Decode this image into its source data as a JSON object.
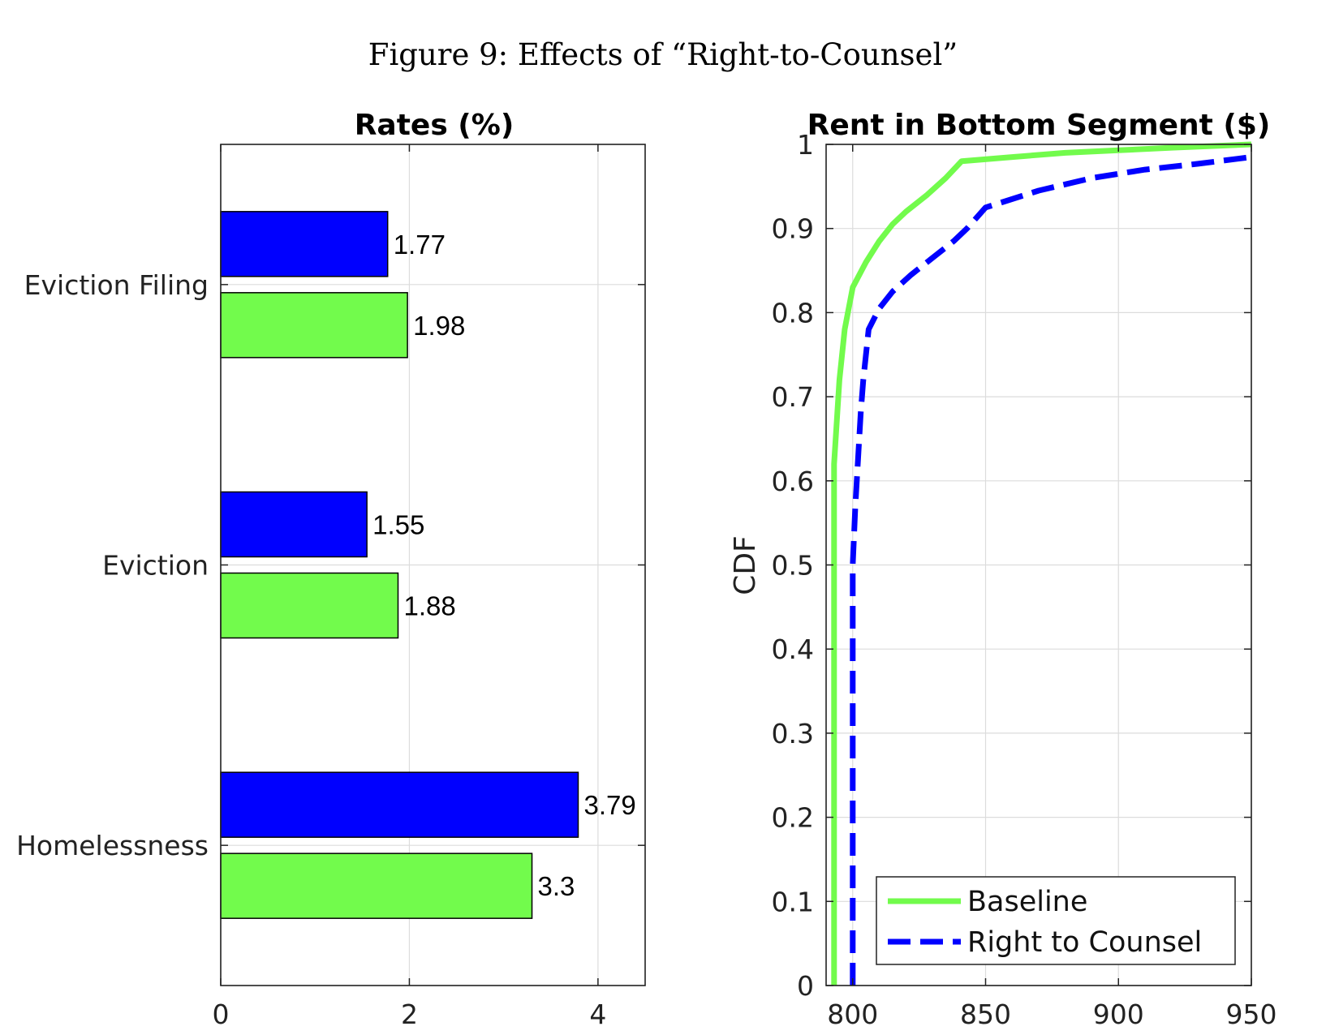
{
  "figure": {
    "caption": "Figure 9: Effects of “Right-to-Counsel”"
  },
  "chart_data": [
    {
      "type": "bar",
      "orientation": "horizontal",
      "title": "Rates (%)",
      "categories": [
        "Eviction Filing",
        "Eviction",
        "Homelessness"
      ],
      "series": [
        {
          "name": "Right to Counsel",
          "color": "#0000ff",
          "values": [
            1.77,
            1.55,
            3.79
          ]
        },
        {
          "name": "Baseline",
          "color": "#72fb4c",
          "values": [
            1.98,
            1.88,
            3.3
          ]
        }
      ],
      "value_labels": [
        [
          "1.77",
          "1.55",
          "3.79"
        ],
        [
          "1.98",
          "1.88",
          "3.3"
        ]
      ],
      "xlim": [
        0,
        4.5
      ],
      "xticks": [
        0,
        2,
        4
      ],
      "xtick_labels": [
        "0",
        "2",
        "4"
      ],
      "grid": true
    },
    {
      "type": "line",
      "title": "Rent in Bottom Segment ($)",
      "xlabel": "",
      "ylabel": "CDF",
      "xlim": [
        790,
        950
      ],
      "ylim": [
        0,
        1
      ],
      "xticks": [
        800,
        850,
        900,
        950
      ],
      "xtick_labels": [
        "800",
        "850",
        "900",
        "950"
      ],
      "yticks": [
        0,
        0.1,
        0.2,
        0.3,
        0.4,
        0.5,
        0.6,
        0.7,
        0.8,
        0.9,
        1
      ],
      "ytick_labels": [
        "0",
        "0.1",
        "0.2",
        "0.3",
        "0.4",
        "0.5",
        "0.6",
        "0.7",
        "0.8",
        "0.9",
        "1"
      ],
      "grid": true,
      "legend": {
        "position": "bottom-right"
      },
      "series": [
        {
          "name": "Baseline",
          "color": "#72fb4c",
          "style": "solid",
          "x": [
            793,
            793,
            795,
            797,
            800,
            805,
            810,
            815,
            820,
            828,
            835,
            841,
            860,
            880,
            900,
            920,
            950
          ],
          "y": [
            0,
            0.62,
            0.72,
            0.78,
            0.83,
            0.86,
            0.885,
            0.905,
            0.92,
            0.94,
            0.96,
            0.98,
            0.985,
            0.99,
            0.993,
            0.996,
            1.0
          ]
        },
        {
          "name": "Right to Counsel",
          "color": "#0000ff",
          "style": "dashed",
          "x": [
            800,
            800,
            801,
            803,
            804,
            806,
            810,
            815,
            822,
            830,
            838,
            843,
            850,
            870,
            890,
            910,
            930,
            950
          ],
          "y": [
            0,
            0.5,
            0.57,
            0.68,
            0.72,
            0.78,
            0.805,
            0.825,
            0.845,
            0.865,
            0.885,
            0.9,
            0.925,
            0.945,
            0.96,
            0.97,
            0.977,
            0.985
          ]
        }
      ]
    }
  ]
}
